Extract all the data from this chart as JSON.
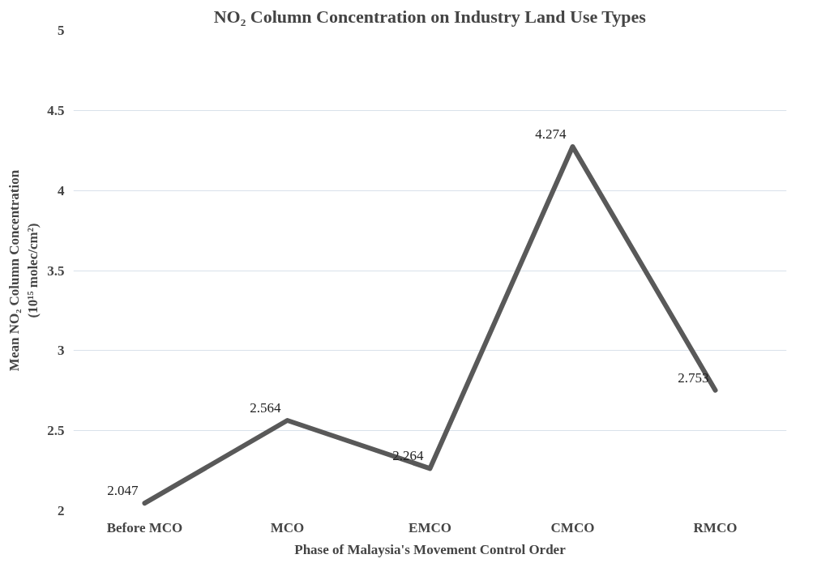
{
  "chart_data": {
    "type": "line",
    "title": "NO₂ Column Concentration on Industry Land Use Types",
    "xlabel": "Phase of Malaysia's Movement Control Order",
    "ylabel": "Mean NO₂ Column Concentration\n(10¹⁵ molec/cm²)",
    "categories": [
      "Before MCO",
      "MCO",
      "EMCO",
      "CMCO",
      "RMCO"
    ],
    "series": [
      {
        "color": "#595959",
        "values": [
          2.047,
          2.564,
          2.264,
          4.274,
          2.753
        ]
      }
    ],
    "ylim": [
      2,
      5
    ],
    "yticks": [
      2,
      2.5,
      3,
      3.5,
      4,
      4.5,
      5
    ],
    "grid": "y",
    "data_labels": true,
    "marker": "none",
    "line_style": "solid"
  }
}
